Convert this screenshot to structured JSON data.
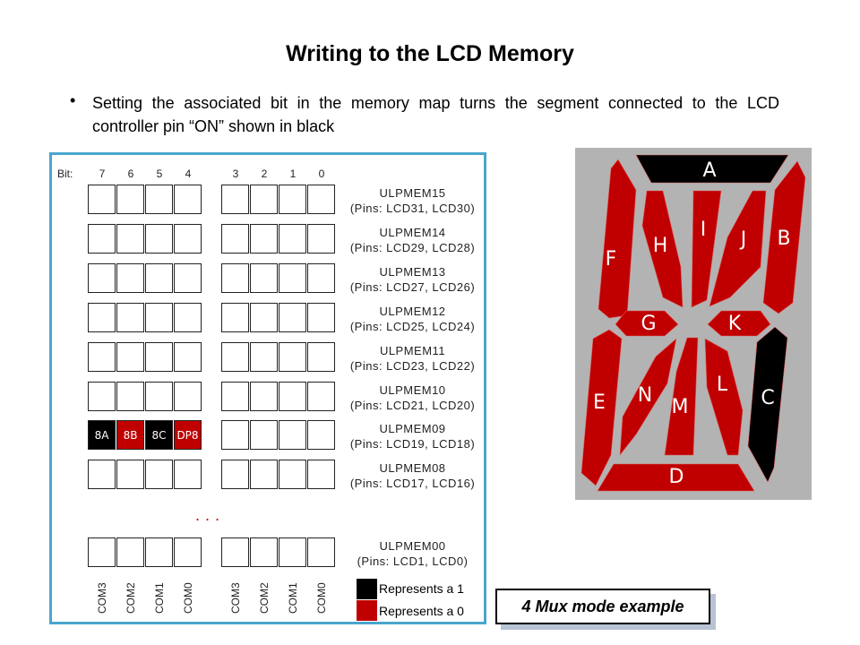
{
  "title": "Writing to the LCD Memory",
  "bullet": "Setting the associated bit in the memory map turns the segment connected to the LCD controller pin “ON” shown in black",
  "memory_map": {
    "bit_label": "Bit:",
    "bits": [
      "7",
      "6",
      "5",
      "4",
      "3",
      "2",
      "1",
      "0"
    ],
    "rows": [
      {
        "name": "ULPMEM15",
        "pins": "(Pins: LCD31, LCD30)"
      },
      {
        "name": "ULPMEM14",
        "pins": "(Pins: LCD29, LCD28)"
      },
      {
        "name": "ULPMEM13",
        "pins": "(Pins: LCD27, LCD26)"
      },
      {
        "name": "ULPMEM12",
        "pins": "(Pins: LCD25, LCD24)"
      },
      {
        "name": "ULPMEM11",
        "pins": "(Pins: LCD23, LCD22)"
      },
      {
        "name": "ULPMEM10",
        "pins": "(Pins: LCD21, LCD20)"
      },
      {
        "name": "ULPMEM09",
        "pins": "(Pins: LCD19, LCD18)",
        "cells": [
          {
            "label": "8A",
            "value": 1
          },
          {
            "label": "8B",
            "value": 0
          },
          {
            "label": "8C",
            "value": 1
          },
          {
            "label": "DP8",
            "value": 0
          }
        ]
      },
      {
        "name": "ULPMEM08",
        "pins": "(Pins: LCD17, LCD16)"
      },
      {
        "name": "ULPMEM00",
        "pins": "(Pins: LCD1, LCD0)"
      }
    ],
    "ellipsis": "...",
    "com_labels": [
      "COM3",
      "COM2",
      "COM1",
      "COM0",
      "COM3",
      "COM2",
      "COM1",
      "COM0"
    ],
    "legend": [
      {
        "label": "Represents a 1",
        "color": "#000000"
      },
      {
        "label": "Represents a 0",
        "color": "#c00000"
      }
    ]
  },
  "caption": "4 Mux mode example",
  "segment_display": {
    "on_color": "#000000",
    "off_color": "#c00000",
    "segments": [
      {
        "id": "A",
        "on": true
      },
      {
        "id": "B",
        "on": false
      },
      {
        "id": "C",
        "on": true
      },
      {
        "id": "D",
        "on": false
      },
      {
        "id": "E",
        "on": false
      },
      {
        "id": "F",
        "on": false
      },
      {
        "id": "G",
        "on": false
      },
      {
        "id": "H",
        "on": false
      },
      {
        "id": "I",
        "on": false
      },
      {
        "id": "J",
        "on": false
      },
      {
        "id": "K",
        "on": false
      },
      {
        "id": "L",
        "on": false
      },
      {
        "id": "M",
        "on": false
      },
      {
        "id": "N",
        "on": false
      }
    ]
  }
}
